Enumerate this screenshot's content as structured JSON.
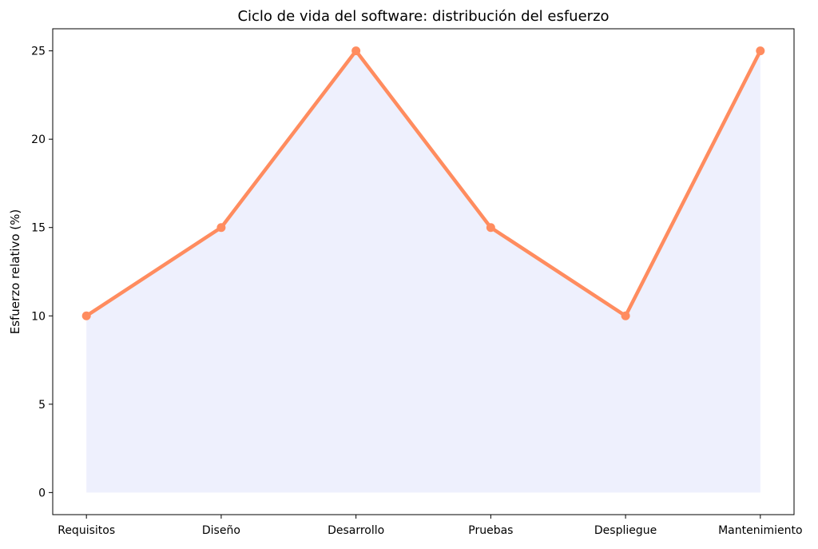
{
  "chart_data": {
    "type": "area",
    "title": "Ciclo de vida del software: distribución del esfuerzo",
    "xlabel": "",
    "ylabel": "Esfuerzo relativo (%)",
    "categories": [
      "Requisitos",
      "Diseño",
      "Desarrollo",
      "Pruebas",
      "Despliegue",
      "Mantenimiento"
    ],
    "values": [
      10,
      15,
      25,
      15,
      10,
      25
    ],
    "ylim": [
      -1.25,
      26.25
    ],
    "yticks": [
      0,
      5,
      10,
      15,
      20,
      25
    ],
    "grid": false,
    "markers": true,
    "colors": {
      "line": "#FF8C5F",
      "fill": "#EEF0FD"
    }
  }
}
